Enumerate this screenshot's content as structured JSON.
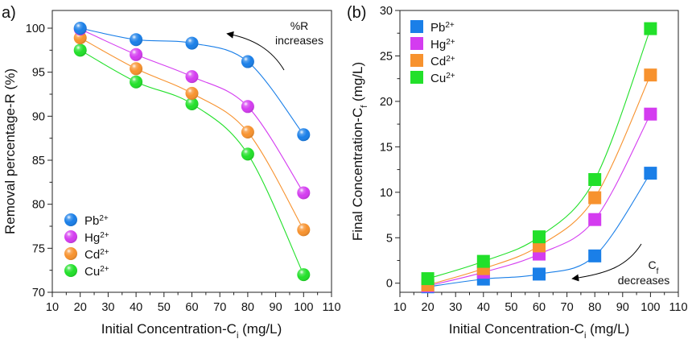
{
  "chart_data": [
    {
      "id": "a",
      "panel_label": "a)",
      "type": "scatter",
      "marker": "sphere",
      "title": "",
      "xlabel_main": "Initial Concentration-C",
      "xlabel_sub": "i",
      "xlabel_tail": " (mg/L)",
      "ylabel": "Removal percentage-R (%)",
      "xlim": [
        10,
        110
      ],
      "ylim": [
        70,
        102
      ],
      "xticks": [
        10,
        20,
        30,
        40,
        50,
        60,
        70,
        80,
        90,
        100,
        110
      ],
      "yticks": [
        70,
        75,
        80,
        85,
        90,
        95,
        100
      ],
      "grid": false,
      "legend_position": "bottom-left",
      "x": [
        20,
        40,
        60,
        80,
        100
      ],
      "series": [
        {
          "name": "Pb",
          "charge": "2+",
          "color": "#1a7fe8",
          "values": [
            100.0,
            98.7,
            98.3,
            96.2,
            87.9
          ]
        },
        {
          "name": "Hg",
          "charge": "2+",
          "color": "#d43cf0",
          "values": [
            99.9,
            97.0,
            94.5,
            91.1,
            81.3
          ]
        },
        {
          "name": "Cd",
          "charge": "2+",
          "color": "#f7922e",
          "values": [
            98.9,
            95.4,
            92.6,
            88.2,
            77.1
          ]
        },
        {
          "name": "Cu",
          "charge": "2+",
          "color": "#22e02a",
          "values": [
            97.5,
            93.9,
            91.4,
            85.7,
            72.0
          ]
        }
      ],
      "annotation": {
        "line1": "%R",
        "line2": "increases",
        "arrow": "counter-clockwise, pointing up-left"
      }
    },
    {
      "id": "b",
      "panel_label": "(b)",
      "type": "scatter",
      "marker": "square",
      "title": "",
      "xlabel_main": "Initial Concentration-C",
      "xlabel_sub": "i",
      "xlabel_tail": " (mg/L)",
      "ylabel_main": "Final Concentration-C",
      "ylabel_sub": "f",
      "ylabel_tail": " (mg/L)",
      "xlim": [
        10,
        110
      ],
      "ylim": [
        -1,
        30
      ],
      "xticks": [
        10,
        20,
        30,
        40,
        50,
        60,
        70,
        80,
        90,
        100,
        110
      ],
      "yticks": [
        0,
        5,
        10,
        15,
        20,
        25,
        30
      ],
      "grid": false,
      "legend_position": "top-left",
      "x": [
        20,
        40,
        60,
        80,
        100
      ],
      "series": [
        {
          "name": "Pb",
          "charge": "2+",
          "color": "#1a7fe8",
          "values": [
            -0.4,
            0.45,
            1.0,
            3.0,
            12.1
          ]
        },
        {
          "name": "Hg",
          "charge": "2+",
          "color": "#d43cf0",
          "values": [
            -0.3,
            1.2,
            3.2,
            7.0,
            18.6
          ]
        },
        {
          "name": "Cd",
          "charge": "2+",
          "color": "#f7922e",
          "values": [
            -0.2,
            1.6,
            4.1,
            9.4,
            22.9
          ]
        },
        {
          "name": "Cu",
          "charge": "2+",
          "color": "#22e02a",
          "values": [
            0.5,
            2.4,
            5.1,
            11.4,
            28.0
          ]
        }
      ],
      "annotation": {
        "line1_main": "C",
        "line1_sub": "f",
        "line2": "decreases",
        "arrow": "clockwise, pointing left"
      }
    }
  ]
}
